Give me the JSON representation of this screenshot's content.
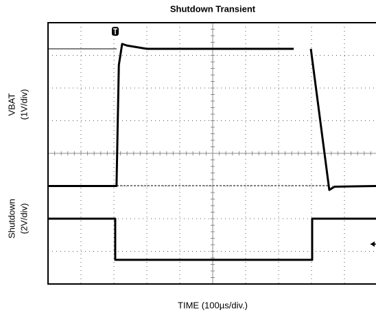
{
  "chart_data": {
    "type": "line",
    "title": "Shutdown Transient",
    "ylabel_top": [
      "VBAT",
      "(1V/div)"
    ],
    "ylabel_bottom": [
      "Shutdown",
      "(2V/div)"
    ],
    "xlabel": "TIME (100µs/div.)",
    "xlim": [
      0,
      10
    ],
    "ylim": [
      0,
      8
    ],
    "xticks": [
      0,
      1,
      2,
      3,
      4,
      5,
      6,
      7,
      8,
      9,
      10
    ],
    "yticks": [
      0,
      1,
      2,
      3,
      4,
      5,
      6,
      7,
      8
    ],
    "grid": true,
    "series": [
      {
        "color": "#000000",
        "x": [
          0,
          2.08,
          2.15,
          2.25,
          2.4,
          3,
          7.46,
          7.5,
          7.98,
          8.54,
          8.7,
          10
        ],
        "values": [
          3,
          3,
          6.7,
          7.35,
          7.3,
          7.2,
          7.2,
          null,
          7.2,
          2.88,
          2.98,
          3
        ]
      },
      {
        "color": "#000000",
        "x": [
          0,
          2.04,
          2.04,
          8.02,
          8.02,
          10
        ],
        "values": [
          2,
          2,
          0.74,
          0.74,
          2,
          2
        ]
      }
    ]
  }
}
